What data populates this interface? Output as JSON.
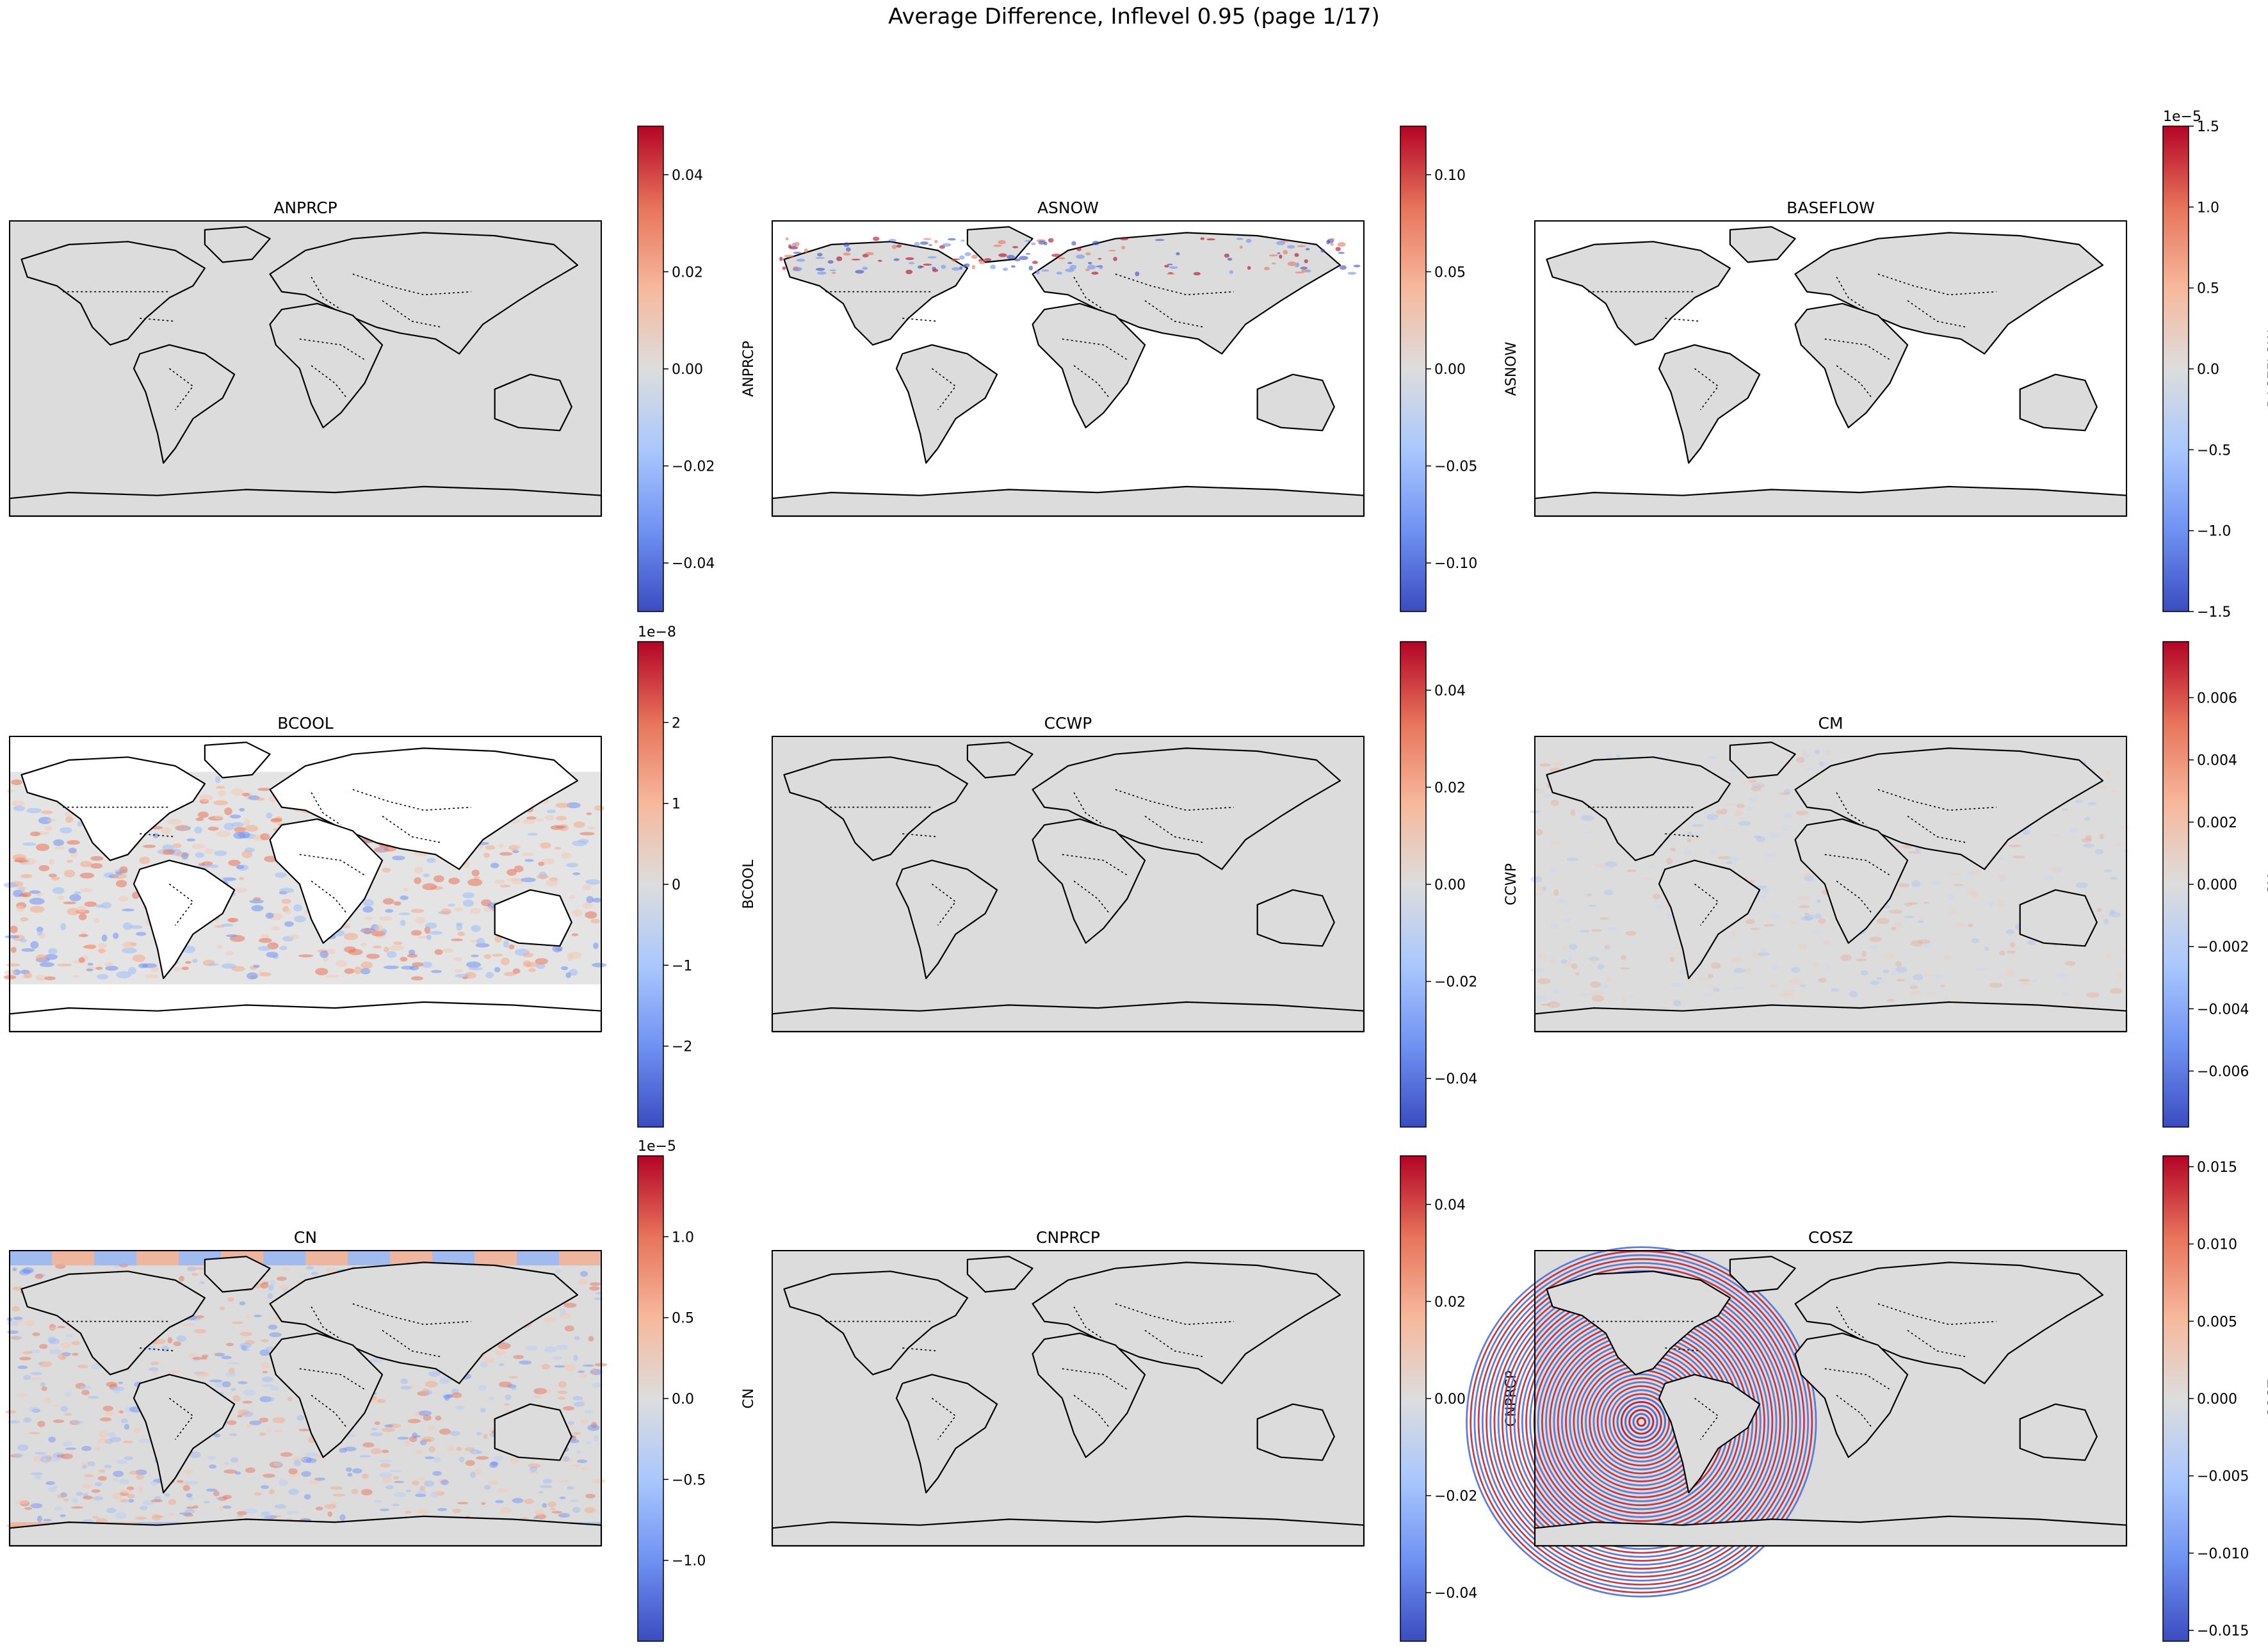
{
  "figure": {
    "title": "Average Difference, Inflevel 0.95 (page 1/17)"
  },
  "colors": {
    "cmap": [
      "#3b4cc0",
      "#6f92f3",
      "#aac7fd",
      "#dddddd",
      "#f7b89c",
      "#e7745b",
      "#b40426"
    ],
    "land": "#dcdcdc",
    "coast": "#000000"
  },
  "chart_data": [
    {
      "type": "heatmap",
      "title": "ANPRCP",
      "ylabel": "ANPRCP",
      "clim": [
        -0.05,
        0.05
      ],
      "exponent": "",
      "ticks": [
        -0.04,
        -0.02,
        0.0,
        0.02,
        0.04
      ],
      "tick_labels": [
        "−0.04",
        "−0.02",
        "0.00",
        "0.02",
        "0.04"
      ],
      "field": "uniform-zero"
    },
    {
      "type": "heatmap",
      "title": "ASNOW",
      "ylabel": "ASNOW",
      "clim": [
        -0.125,
        0.125
      ],
      "exponent": "",
      "ticks": [
        -0.1,
        -0.05,
        0.0,
        0.05,
        0.1
      ],
      "tick_labels": [
        "−0.10",
        "−0.05",
        "0.00",
        "0.05",
        "0.10"
      ],
      "field": "land-only, high-latitude snow differences"
    },
    {
      "type": "heatmap",
      "title": "BASEFLOW",
      "ylabel": "BASEFLOW",
      "clim": [
        -1.5,
        1.5
      ],
      "exponent": "1e−5",
      "ticks": [
        -1.5,
        -1.0,
        -0.5,
        0.0,
        0.5,
        1.0,
        1.5
      ],
      "tick_labels": [
        "−1.5",
        "−1.0",
        "−0.5",
        "0.0",
        "0.5",
        "1.0",
        "1.5"
      ],
      "field": "land-only, near zero"
    },
    {
      "type": "heatmap",
      "title": "BCOOL",
      "ylabel": "BCOOL",
      "clim": [
        -3,
        3
      ],
      "exponent": "1e−8",
      "ticks": [
        -2,
        -1,
        0,
        1,
        2
      ],
      "tick_labels": [
        "−2",
        "−1",
        "0",
        "1",
        "2"
      ],
      "field": "ocean-only, noisy positive/negative"
    },
    {
      "type": "heatmap",
      "title": "CCWP",
      "ylabel": "CCWP",
      "clim": [
        -0.05,
        0.05
      ],
      "exponent": "",
      "ticks": [
        -0.04,
        -0.02,
        0.0,
        0.02,
        0.04
      ],
      "tick_labels": [
        "−0.04",
        "−0.02",
        "0.00",
        "0.02",
        "0.04"
      ],
      "field": "uniform-zero"
    },
    {
      "type": "heatmap",
      "title": "CM",
      "ylabel": "CM",
      "clim": [
        -0.0078,
        0.0078
      ],
      "exponent": "",
      "ticks": [
        -0.006,
        -0.004,
        -0.002,
        0.0,
        0.002,
        0.004,
        0.006
      ],
      "tick_labels": [
        "−0.006",
        "−0.004",
        "−0.002",
        "0.000",
        "0.002",
        "0.004",
        "0.006"
      ],
      "field": "global, faint noise"
    },
    {
      "type": "heatmap",
      "title": "CN",
      "ylabel": "CN",
      "clim": [
        -1.5,
        1.5
      ],
      "exponent": "1e−5",
      "ticks": [
        -1.0,
        -0.5,
        0.0,
        0.5,
        1.0
      ],
      "tick_labels": [
        "−1.0",
        "−0.5",
        "0.0",
        "0.5",
        "1.0"
      ],
      "field": "global, strong polar bands"
    },
    {
      "type": "heatmap",
      "title": "CNPRCP",
      "ylabel": "CNPRCP",
      "clim": [
        -0.05,
        0.05
      ],
      "exponent": "",
      "ticks": [
        -0.04,
        -0.02,
        0.0,
        0.02,
        0.04
      ],
      "tick_labels": [
        "−0.04",
        "−0.02",
        "0.00",
        "0.02",
        "0.04"
      ],
      "field": "uniform-zero"
    },
    {
      "type": "heatmap",
      "title": "COSZ",
      "ylabel": "COSZ",
      "clim": [
        -0.0157,
        0.0157
      ],
      "exponent": "",
      "ticks": [
        -0.015,
        -0.01,
        -0.005,
        0.0,
        0.005,
        0.01,
        0.015
      ],
      "tick_labels": [
        "−0.015",
        "−0.010",
        "−0.005",
        "0.000",
        "0.005",
        "0.010",
        "0.015"
      ],
      "field": "concentric rings over eastern Pacific"
    }
  ]
}
